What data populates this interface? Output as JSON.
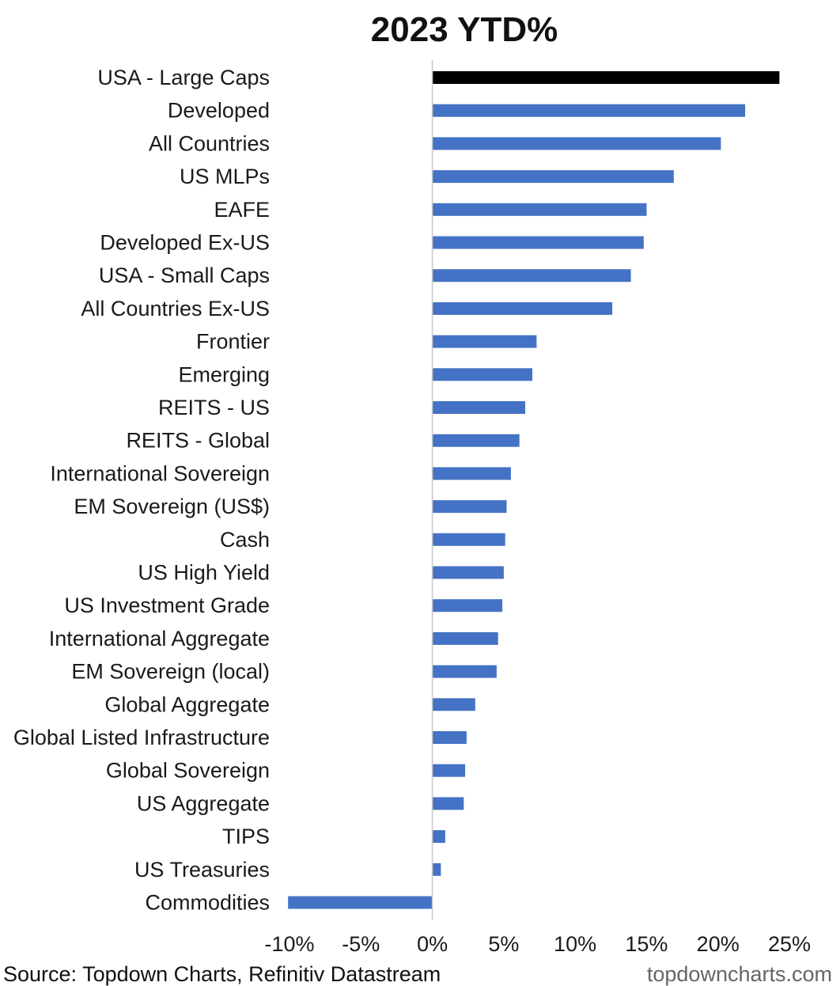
{
  "chart_data": {
    "type": "bar",
    "orientation": "horizontal",
    "title": "2023 YTD%",
    "categories": [
      "USA - Large Caps",
      "Developed",
      "All Countries",
      "US MLPs",
      "EAFE",
      "Developed Ex-US",
      "USA - Small Caps",
      "All Countries Ex-US",
      "Frontier",
      "Emerging",
      "REITS - US",
      "REITS - Global",
      "International Sovereign",
      "EM Sovereign (US$)",
      "Cash",
      "US High Yield",
      "US Investment Grade",
      "International Aggregate",
      "EM Sovereign (local)",
      "Global Aggregate",
      "Global Listed Infrastructure",
      "Global Sovereign",
      "US Aggregate",
      "TIPS",
      "US Treasuries",
      "Commodities"
    ],
    "values": [
      24.3,
      21.9,
      20.2,
      16.9,
      15.0,
      14.8,
      13.9,
      12.6,
      7.3,
      7.0,
      6.5,
      6.1,
      5.5,
      5.2,
      5.1,
      5.0,
      4.9,
      4.6,
      4.5,
      3.0,
      2.4,
      2.3,
      2.2,
      0.9,
      0.6,
      -10.1
    ],
    "xlim": [
      -10,
      25
    ],
    "x_ticks": [
      "-10%",
      "-5%",
      "0%",
      "5%",
      "10%",
      "15%",
      "20%",
      "25%"
    ],
    "x_tick_values": [
      -10,
      -5,
      0,
      5,
      10,
      15,
      20,
      25
    ],
    "bar_colors": {
      "highlight": "#000000",
      "default": "#4472c4"
    },
    "highlight_category": "USA - Large Caps",
    "grid": false,
    "legend": "none"
  },
  "footer": {
    "source": "Source: Topdown Charts, Refinitiv Datastream",
    "brand": "topdowncharts.com"
  }
}
